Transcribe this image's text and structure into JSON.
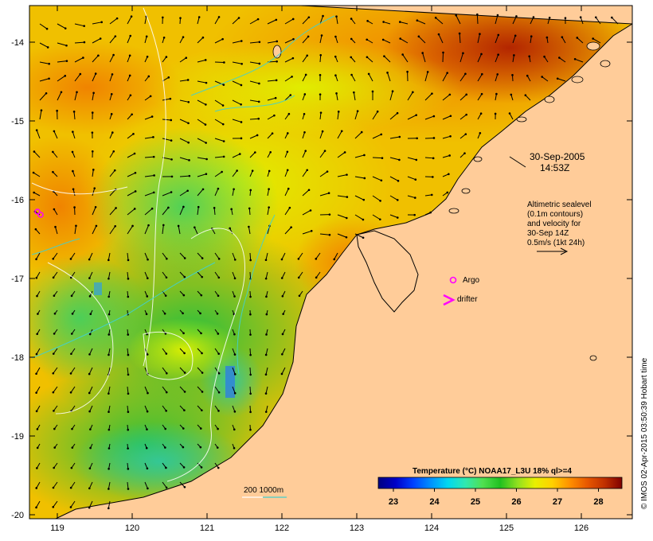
{
  "map": {
    "lon_range": [
      118.7,
      126.7
    ],
    "lat_range": [
      -20.1,
      -13.6
    ],
    "land_color": "#FFCC99",
    "coast_color": "#000000",
    "x_ticks": [
      "119",
      "120",
      "121",
      "122",
      "123",
      "124",
      "125",
      "126"
    ],
    "y_ticks": [
      "-14",
      "-15",
      "-16",
      "-17",
      "-18",
      "-19",
      "-20"
    ]
  },
  "annotations": {
    "date": "30-Sep-2005",
    "time": "14:53Z",
    "altimetry_lines": [
      "Altimetric sealevel",
      "(0.1m contours)",
      "and velocity for",
      "30-Sep 14Z",
      "0.5m/s (1kt 24h)"
    ],
    "argo_label": "Argo",
    "drifter_label": "drifter",
    "depth_legend": "200  1000m"
  },
  "colorbar": {
    "title": "Temperature (°C) NOAA17_L3U 18% ql>=4",
    "ticks": [
      "23",
      "24",
      "25",
      "26",
      "27",
      "28"
    ],
    "colors": [
      "#000080",
      "#0000C8",
      "#0040FF",
      "#0090FF",
      "#00D8F0",
      "#30E8B0",
      "#50E050",
      "#20C020",
      "#90E020",
      "#E8F000",
      "#FFD000",
      "#FF9000",
      "#E85800",
      "#C03000",
      "#800000"
    ]
  },
  "credit": "© IMOS 02-Apr-2015 03:50:39 Hobart time"
}
